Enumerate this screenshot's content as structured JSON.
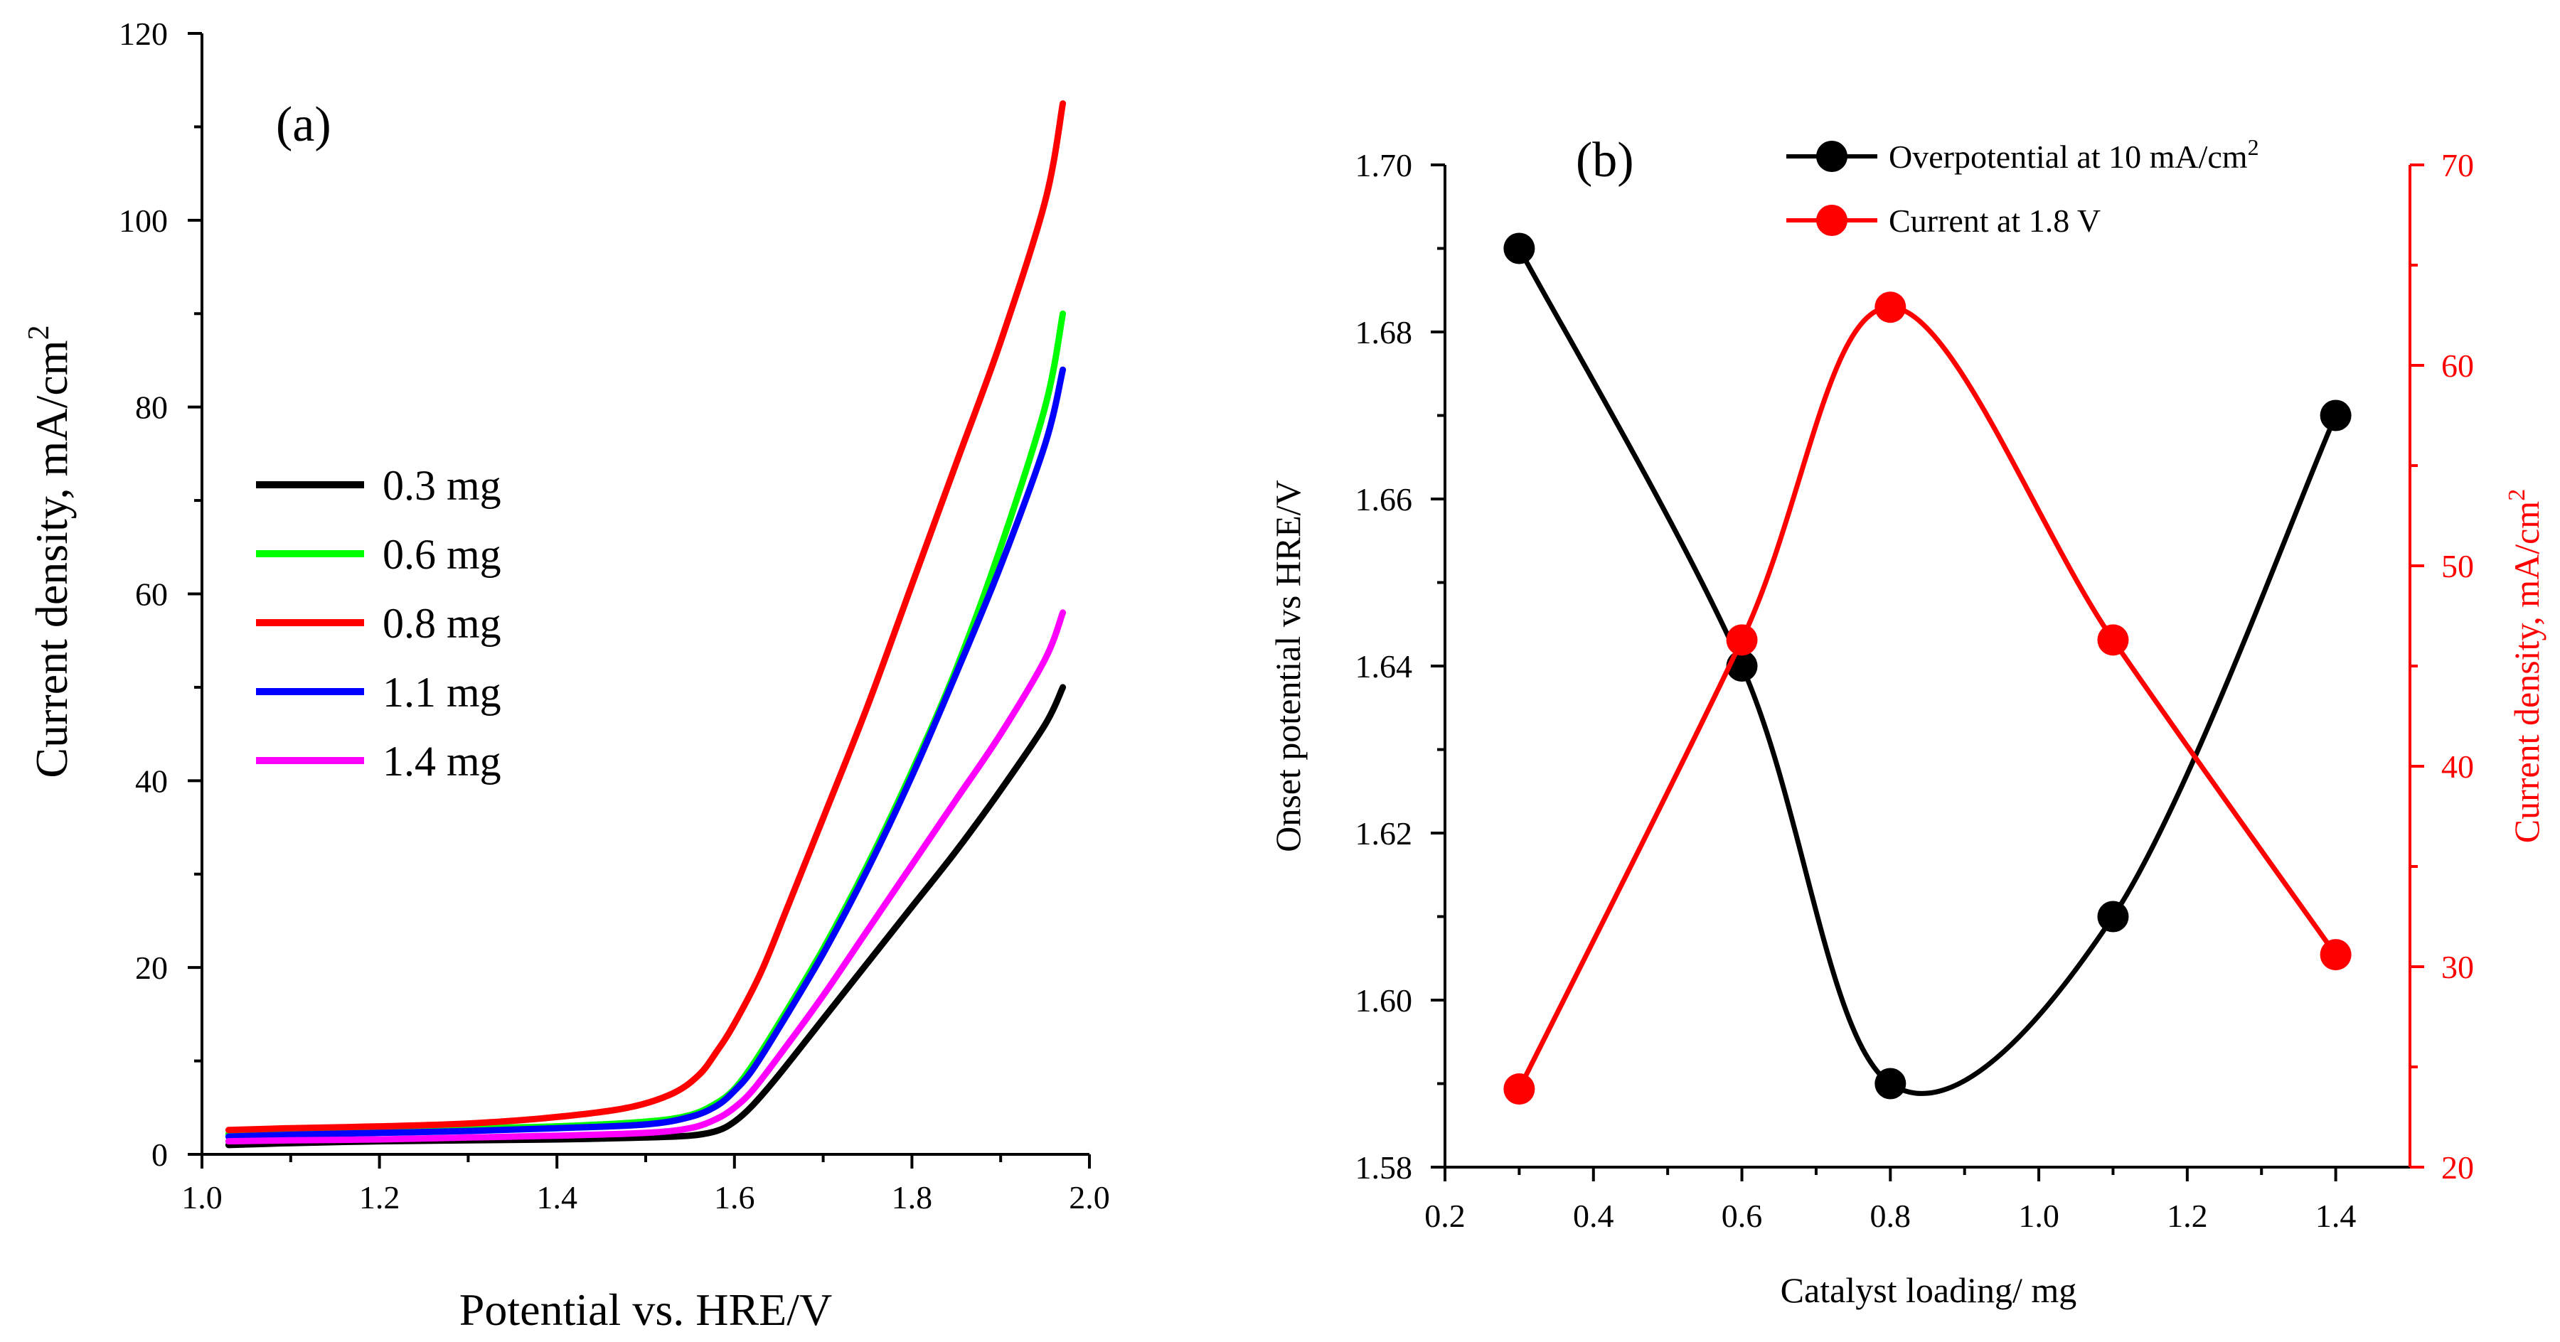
{
  "chart_data": [
    {
      "type": "line",
      "panel_label": "(a)",
      "xlabel": "Potential vs. HRE/V",
      "ylabel": "Current density, mA/cm",
      "ylabel_sup": "2",
      "xlim": [
        1.0,
        2.0
      ],
      "ylim": [
        0,
        120
      ],
      "xticks": [
        1.0,
        1.2,
        1.4,
        1.6,
        1.8,
        2.0
      ],
      "xtick_labels": [
        "1.0",
        "1.2",
        "1.4",
        "1.6",
        "1.8",
        "2.0"
      ],
      "yticks": [
        0,
        20,
        40,
        60,
        80,
        100,
        120
      ],
      "ytick_labels": [
        "0",
        "20",
        "40",
        "60",
        "80",
        "100",
        "120"
      ],
      "legend_position": "center-left",
      "series": [
        {
          "name": "0.3 mg",
          "color": "#000000",
          "points": [
            [
              1.03,
              1.0
            ],
            [
              1.1,
              1.2
            ],
            [
              1.2,
              1.4
            ],
            [
              1.3,
              1.5
            ],
            [
              1.4,
              1.6
            ],
            [
              1.5,
              1.8
            ],
            [
              1.55,
              2.0
            ],
            [
              1.58,
              2.5
            ],
            [
              1.6,
              3.5
            ],
            [
              1.62,
              5.2
            ],
            [
              1.65,
              8.5
            ],
            [
              1.7,
              14.5
            ],
            [
              1.75,
              20.5
            ],
            [
              1.8,
              26.5
            ],
            [
              1.85,
              32.5
            ],
            [
              1.9,
              39.0
            ],
            [
              1.95,
              46.0
            ],
            [
              1.97,
              50.0
            ]
          ]
        },
        {
          "name": "0.6 mg",
          "color": "#00ff00",
          "points": [
            [
              1.03,
              2.2
            ],
            [
              1.1,
              2.4
            ],
            [
              1.2,
              2.6
            ],
            [
              1.3,
              2.8
            ],
            [
              1.4,
              3.0
            ],
            [
              1.5,
              3.5
            ],
            [
              1.55,
              4.2
            ],
            [
              1.58,
              5.5
            ],
            [
              1.6,
              7.0
            ],
            [
              1.62,
              9.5
            ],
            [
              1.65,
              14.0
            ],
            [
              1.7,
              22.0
            ],
            [
              1.75,
              31.0
            ],
            [
              1.8,
              41.0
            ],
            [
              1.85,
              52.0
            ],
            [
              1.9,
              65.0
            ],
            [
              1.95,
              80.0
            ],
            [
              1.97,
              90.0
            ]
          ]
        },
        {
          "name": "0.8 mg",
          "color": "#ff0000",
          "points": [
            [
              1.03,
              2.6
            ],
            [
              1.1,
              2.8
            ],
            [
              1.2,
              3.0
            ],
            [
              1.3,
              3.3
            ],
            [
              1.4,
              4.0
            ],
            [
              1.48,
              5.0
            ],
            [
              1.53,
              6.5
            ],
            [
              1.56,
              8.5
            ],
            [
              1.58,
              11.0
            ],
            [
              1.6,
              14.0
            ],
            [
              1.63,
              19.5
            ],
            [
              1.66,
              26.5
            ],
            [
              1.7,
              36.0
            ],
            [
              1.75,
              48.0
            ],
            [
              1.8,
              61.0
            ],
            [
              1.85,
              74.0
            ],
            [
              1.9,
              87.0
            ],
            [
              1.95,
              102.0
            ],
            [
              1.97,
              112.5
            ]
          ]
        },
        {
          "name": "1.1 mg",
          "color": "#0000ff",
          "points": [
            [
              1.03,
              1.9
            ],
            [
              1.1,
              2.1
            ],
            [
              1.2,
              2.3
            ],
            [
              1.3,
              2.5
            ],
            [
              1.4,
              2.8
            ],
            [
              1.5,
              3.2
            ],
            [
              1.55,
              4.0
            ],
            [
              1.58,
              5.2
            ],
            [
              1.6,
              6.8
            ],
            [
              1.62,
              9.0
            ],
            [
              1.65,
              13.5
            ],
            [
              1.7,
              21.5
            ],
            [
              1.75,
              30.5
            ],
            [
              1.8,
              40.5
            ],
            [
              1.85,
              51.5
            ],
            [
              1.9,
              63.0
            ],
            [
              1.95,
              76.0
            ],
            [
              1.97,
              84.0
            ]
          ]
        },
        {
          "name": "1.4 mg",
          "color": "#ff00ff",
          "points": [
            [
              1.03,
              1.4
            ],
            [
              1.1,
              1.5
            ],
            [
              1.2,
              1.6
            ],
            [
              1.3,
              1.8
            ],
            [
              1.4,
              2.0
            ],
            [
              1.5,
              2.3
            ],
            [
              1.55,
              2.8
            ],
            [
              1.58,
              3.8
            ],
            [
              1.6,
              5.0
            ],
            [
              1.62,
              6.8
            ],
            [
              1.65,
              10.5
            ],
            [
              1.7,
              17.0
            ],
            [
              1.75,
              24.0
            ],
            [
              1.8,
              31.0
            ],
            [
              1.85,
              38.0
            ],
            [
              1.9,
              45.0
            ],
            [
              1.95,
              53.0
            ],
            [
              1.97,
              58.0
            ]
          ]
        }
      ]
    },
    {
      "type": "line",
      "panel_label": "(b)",
      "xlabel": "Catalyst loading/ mg",
      "ylabel_left": "Onset potential vs HRE/V",
      "ylabel_right": "Current density, mA/cm",
      "ylabel_right_sup": "2",
      "xlim": [
        0.2,
        1.5
      ],
      "ylim_left": [
        1.58,
        1.7
      ],
      "ylim_right": [
        20,
        70
      ],
      "xticks": [
        0.2,
        0.4,
        0.6,
        0.8,
        1.0,
        1.2,
        1.4
      ],
      "xtick_labels": [
        "0.2",
        "0.4",
        "0.6",
        "0.8",
        "1.0",
        "1.2",
        "1.4"
      ],
      "yticks_left": [
        1.58,
        1.6,
        1.62,
        1.64,
        1.66,
        1.68,
        1.7
      ],
      "ytick_labels_left": [
        "1.58",
        "1.60",
        "1.62",
        "1.64",
        "1.66",
        "1.68",
        "1.70"
      ],
      "yticks_right": [
        20,
        30,
        40,
        50,
        60,
        70
      ],
      "ytick_labels_right": [
        "20",
        "30",
        "40",
        "50",
        "60",
        "70"
      ],
      "legend_position": "top-right",
      "series": [
        {
          "name": "Overpotential at 10 mA/cm",
          "name_sup": "2",
          "color": "#000000",
          "axis": "left",
          "x": [
            0.3,
            0.6,
            0.8,
            1.1,
            1.4
          ],
          "y": [
            1.69,
            1.64,
            1.59,
            1.61,
            1.67
          ]
        },
        {
          "name": "Current at 1.8 V",
          "color": "#ff0000",
          "axis": "right",
          "x": [
            0.3,
            0.6,
            0.8,
            1.1,
            1.4
          ],
          "y": [
            23.9,
            46.3,
            62.9,
            46.3,
            30.6
          ]
        }
      ]
    }
  ]
}
